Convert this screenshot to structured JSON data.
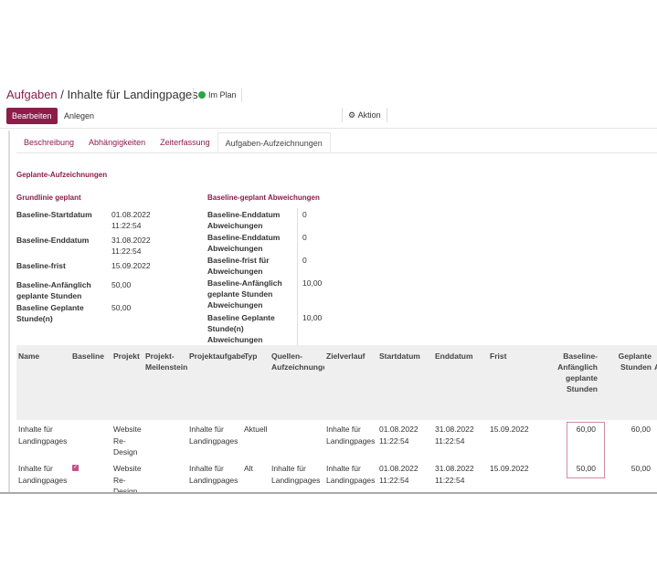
{
  "breadcrumb": {
    "parent": "Aufgaben",
    "separator": "/",
    "current": "Inhalte für Landingpages"
  },
  "status": {
    "label": "Im Plan",
    "color": "#28a745"
  },
  "toolbar": {
    "edit": "Bearbeiten",
    "create": "Anlegen",
    "action": "Aktion",
    "action_icon": "gear-icon"
  },
  "tabs": [
    "Beschreibung",
    "Abhängigkeiten",
    "Zeiterfassung",
    "Aufgaben-Aufzeichnungen"
  ],
  "section": "Geplante-Aufzeichnungen",
  "left": {
    "title": "Grundlinie geplant",
    "rows": [
      {
        "label": "Baseline-Startdatum",
        "value": "01.08.2022 11:22:54"
      },
      {
        "label": "Baseline-Enddatum",
        "value": "31.08.2022 11:22:54"
      },
      {
        "label": "Baseline-frist",
        "value": "15.09.2022"
      },
      {
        "label": "Baseline-Anfänglich geplante Stunden",
        "value": "50,00"
      },
      {
        "label": "Baseline Geplante Stunde(n)",
        "value": "50,00"
      }
    ]
  },
  "right": {
    "title": "Baseline-geplant Abweichungen",
    "rows": [
      {
        "label": "Baseline-Enddatum Abweichungen",
        "value": "0"
      },
      {
        "label": "Baseline-Enddatum Abweichungen",
        "value": "0"
      },
      {
        "label": "Baseline-frist für Abweichungen",
        "value": "0"
      },
      {
        "label": "Baseline-Anfänglich geplante Stunden Abweichungen",
        "value": "10,00"
      },
      {
        "label": "Baseline Geplante Stunde(n) Abweichungen",
        "value": "10,00"
      }
    ]
  },
  "table": {
    "headers": [
      "Name",
      "Baseline",
      "Projekt",
      "Projekt-Meilenstein",
      "Projektaufgabe",
      "Typ",
      "Quellen-Aufzeichnungen",
      "Zielverlauf",
      "Startdatum",
      "Enddatum",
      "Frist",
      "Baseline-Anfänglich geplante Stunden",
      "Geplante Stunden",
      "A"
    ],
    "rows": [
      {
        "name": "Inhalte für Landingpages",
        "baseline": false,
        "projekt": "Website Re-Design",
        "meilenstein": "",
        "aufgabe": "Inhalte für Landingpages",
        "typ": "Aktuell",
        "quelle": "",
        "ziel": "Inhalte für Landingpages",
        "start": "01.08.2022 11:22:54",
        "ende": "31.08.2022 11:22:54",
        "frist": "15.09.2022",
        "baseline_stunden": "60,00",
        "geplant": "60,00"
      },
      {
        "name": "Inhalte für Landingpages",
        "baseline": true,
        "projekt": "Website Re-Design",
        "meilenstein": "",
        "aufgabe": "Inhalte für Landingpages",
        "typ": "Alt",
        "quelle": "Inhalte für Landingpages",
        "ziel": "Inhalte für Landingpages",
        "start": "01.08.2022 11:22:54",
        "ende": "31.08.2022 11:22:54",
        "frist": "15.09.2022",
        "baseline_stunden": "50,00",
        "geplant": "50,00"
      }
    ]
  }
}
